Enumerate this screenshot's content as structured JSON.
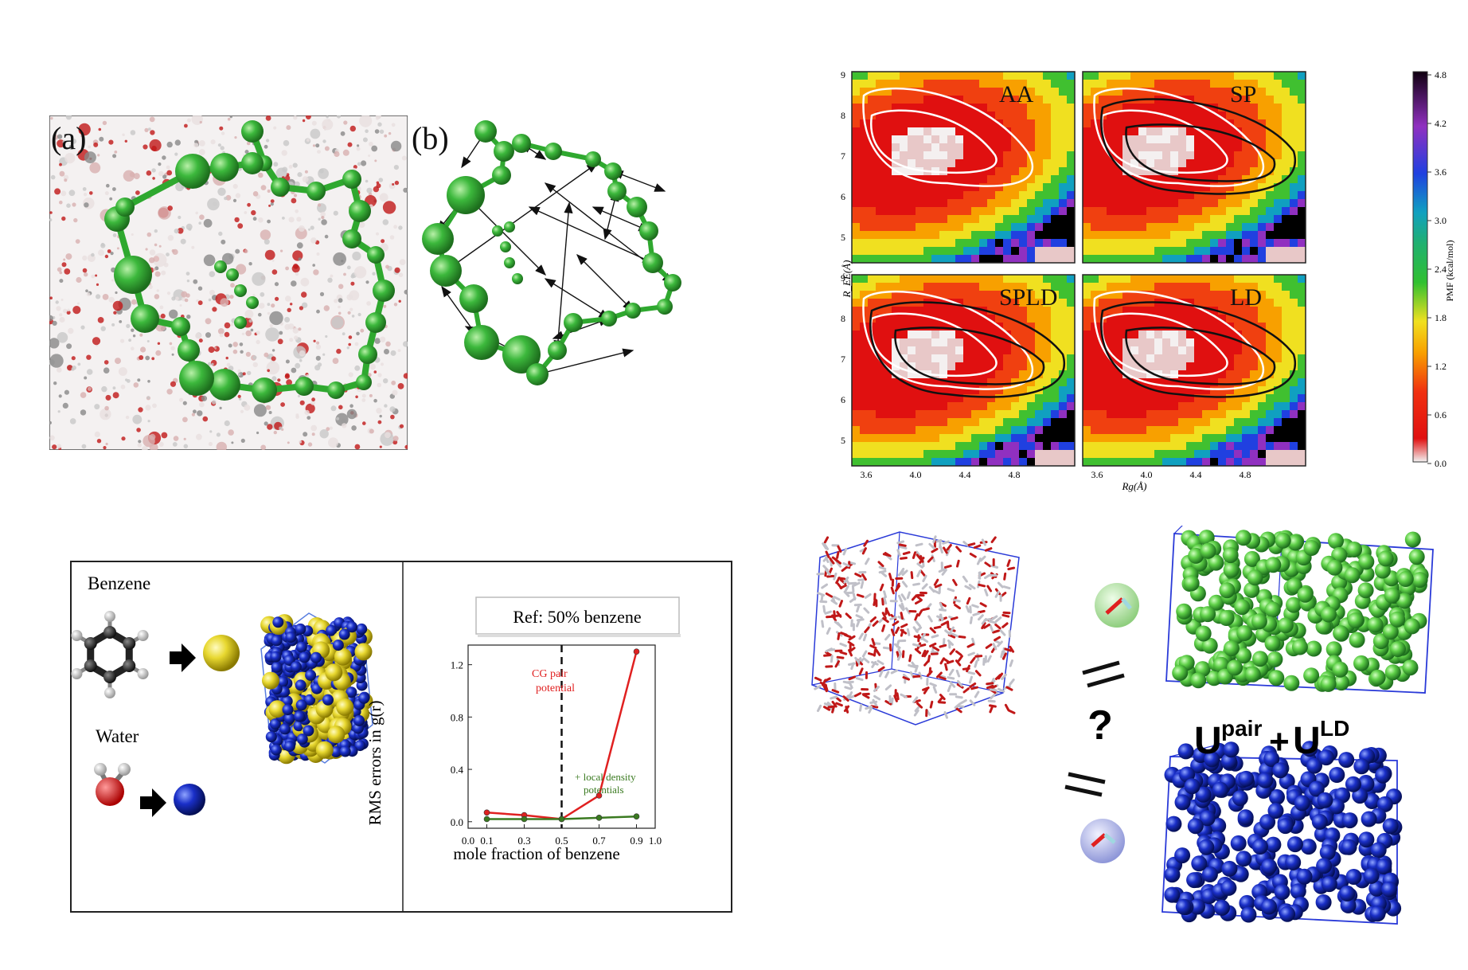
{
  "panel_a": {
    "label": "(a)"
  },
  "panel_b": {
    "label": "(b)"
  },
  "pmf": {
    "titles": [
      "AA",
      "SP",
      "SPLD",
      "LD"
    ],
    "y_ticks": [
      "9",
      "8",
      "7",
      "6",
      "5"
    ],
    "x_ticks": [
      "3.6",
      "4.0",
      "4.4",
      "4.8"
    ],
    "ylabel": "R_EE(Å)",
    "xlabel": "Rg(Å)",
    "colorbar": {
      "ticks": [
        "4.8",
        "4.2",
        "3.6",
        "3.0",
        "2.4",
        "1.8",
        "1.2",
        "0.6",
        "0.0"
      ],
      "label": "PMF (kcal/mol)"
    }
  },
  "benzene": {
    "benzene_label": "Benzene",
    "water_label": "Water",
    "ref_label": "Ref: 50% benzene",
    "red_series_label_1": "CG pair",
    "red_series_label_2": "potential",
    "green_series_label_1": "+ local density",
    "green_series_label_2": "potentials",
    "xlabel": "mole fraction of benzene",
    "ylabel": "RMS errors in g(r)",
    "x_ticks": [
      "0.0",
      "0.1",
      "0.3",
      "0.5",
      "0.7",
      "0.9",
      "1.0"
    ],
    "y_ticks": [
      "1.2",
      "0.8",
      "0.4",
      "0.0"
    ]
  },
  "chart_data": {
    "type": "line",
    "x": [
      0.1,
      0.3,
      0.5,
      0.7,
      0.9
    ],
    "series": [
      {
        "name": "CG pair potential",
        "color": "#e02020",
        "values": [
          0.07,
          0.05,
          0.02,
          0.2,
          1.3
        ]
      },
      {
        "name": "+ local density potentials",
        "color": "#3a7a20",
        "values": [
          0.02,
          0.02,
          0.02,
          0.03,
          0.04
        ]
      }
    ],
    "xlabel": "mole fraction of benzene",
    "ylabel": "RMS errors in g(r)",
    "xlim": [
      0.0,
      1.0
    ],
    "ylim": [
      -0.05,
      1.35
    ],
    "annotations": [
      "Ref: 50% benzene"
    ]
  },
  "water_panel": {
    "question": "?",
    "equation_u1": "U",
    "equation_sup1": "pair",
    "equation_plus": "+",
    "equation_u2": "U",
    "equation_sup2": "LD"
  },
  "colors": {
    "green": "#3cb83c",
    "blue": "#1a2fc8",
    "yellow": "#e8d830",
    "red": "#e02020"
  }
}
